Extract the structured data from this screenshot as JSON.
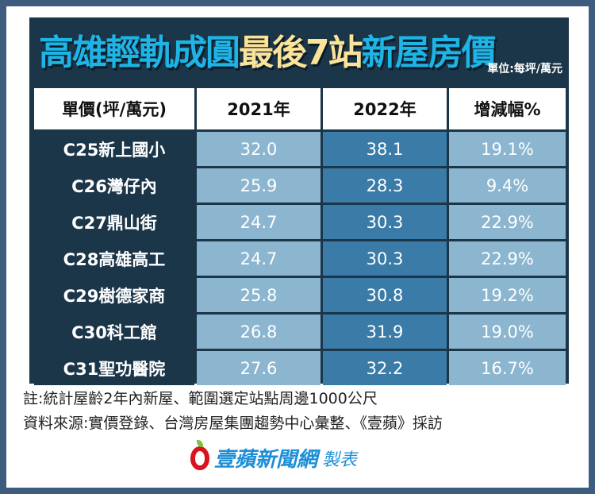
{
  "title": {
    "part1": "高雄輕軌成圓",
    "part2": "最後7站",
    "part3": "新屋房價"
  },
  "unit": "單位:每坪/萬元",
  "chart_data": {
    "type": "table",
    "columns": [
      "單價(坪/萬元)",
      "2021年",
      "2022年",
      "增減幅%"
    ],
    "rows": [
      [
        "C25新上國小",
        "32.0",
        "38.1",
        "19.1%"
      ],
      [
        "C26灣仔內",
        "25.9",
        "28.3",
        "9.4%"
      ],
      [
        "C27鼎山街",
        "24.7",
        "30.3",
        "22.9%"
      ],
      [
        "C28高雄高工",
        "24.7",
        "30.3",
        "22.9%"
      ],
      [
        "C29樹德家商",
        "25.8",
        "30.8",
        "19.2%"
      ],
      [
        "C30科工館",
        "26.8",
        "31.9",
        "19.0%"
      ],
      [
        "C31聖功醫院",
        "27.6",
        "32.2",
        "16.7%"
      ]
    ],
    "colors": {
      "label_bg": "#1b3549",
      "col_2021": "#8cb6cf",
      "col_2022": "#3a7ba8",
      "col_change": "#8cb6cf"
    }
  },
  "notes": [
    "註:統計屋齡2年內新屋、範圍選定站點周邊1000公尺",
    "資料來源:實價登錄、台灣房屋集團趨勢中心彙整、《壹蘋》採訪"
  ],
  "logo": {
    "brand": "壹蘋新聞網",
    "suffix": "製表",
    "icon": "apple-icon"
  }
}
